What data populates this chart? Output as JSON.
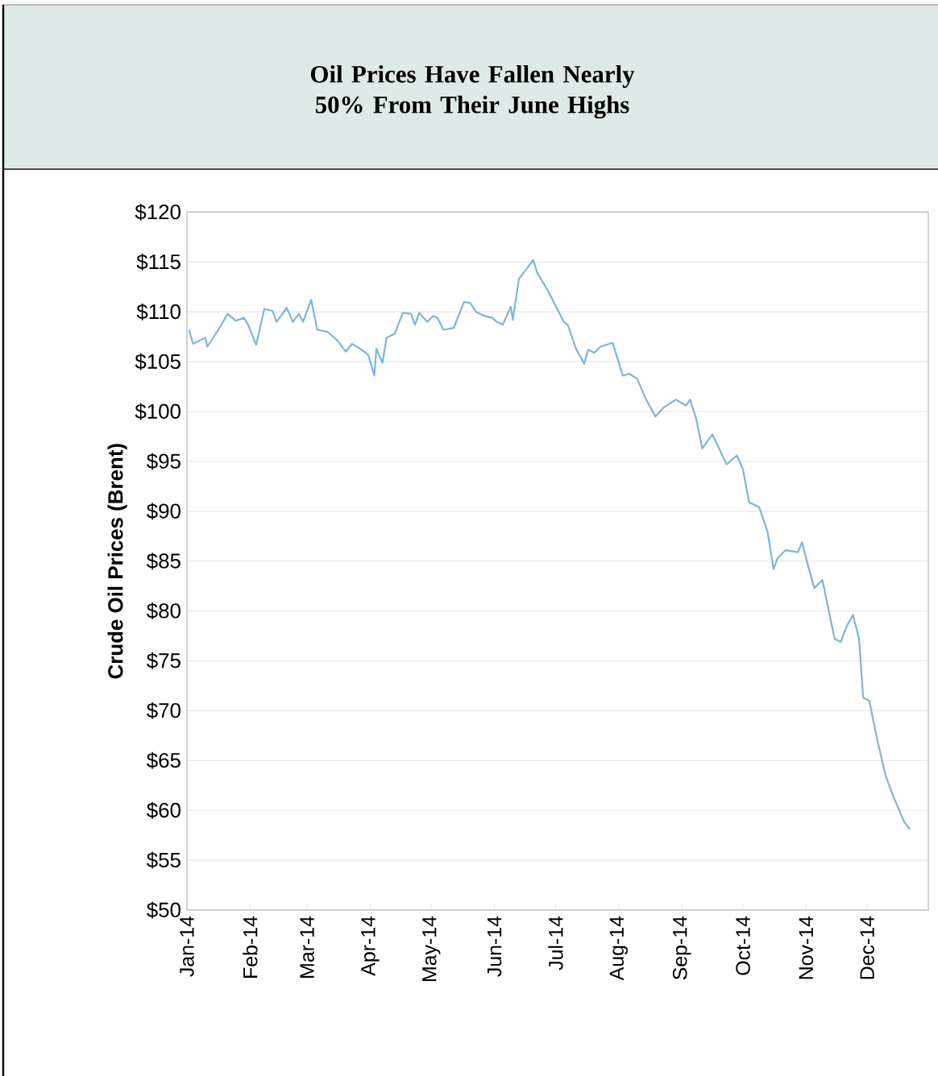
{
  "chart_data": {
    "type": "line",
    "title": "Oil Prices Have Fallen Nearly 50% From Their June Highs",
    "ylabel": "Crude Oil Prices (Brent)",
    "x": [
      "2014-01-02",
      "2014-01-04",
      "2014-01-10",
      "2014-01-11",
      "2014-01-17",
      "2014-01-21",
      "2014-01-25",
      "2014-01-29",
      "2014-01-31",
      "2014-02-04",
      "2014-02-08",
      "2014-02-12",
      "2014-02-14",
      "2014-02-19",
      "2014-02-22",
      "2014-02-25",
      "2014-02-27",
      "2014-03-03",
      "2014-03-06",
      "2014-03-11",
      "2014-03-16",
      "2014-03-20",
      "2014-03-23",
      "2014-03-27",
      "2014-03-31",
      "2014-04-03",
      "2014-04-04",
      "2014-04-07",
      "2014-04-09",
      "2014-04-13",
      "2014-04-17",
      "2014-04-21",
      "2014-04-23",
      "2014-04-25",
      "2014-04-29",
      "2014-05-02",
      "2014-05-04",
      "2014-05-07",
      "2014-05-12",
      "2014-05-17",
      "2014-05-20",
      "2014-05-23",
      "2014-05-27",
      "2014-05-31",
      "2014-06-02",
      "2014-06-05",
      "2014-06-09",
      "2014-06-10",
      "2014-06-13",
      "2014-06-20",
      "2014-06-22",
      "2014-06-27",
      "2014-07-05",
      "2014-07-07",
      "2014-07-11",
      "2014-07-15",
      "2014-07-17",
      "2014-07-20",
      "2014-07-23",
      "2014-07-29",
      "2014-08-03",
      "2014-08-06",
      "2014-08-10",
      "2014-08-14",
      "2014-08-19",
      "2014-08-23",
      "2014-08-29",
      "2014-09-03",
      "2014-09-05",
      "2014-09-08",
      "2014-09-11",
      "2014-09-16",
      "2014-09-23",
      "2014-09-28",
      "2014-10-01",
      "2014-10-04",
      "2014-10-09",
      "2014-10-13",
      "2014-10-16",
      "2014-10-18",
      "2014-10-22",
      "2014-10-28",
      "2014-10-30",
      "2014-11-02",
      "2014-11-05",
      "2014-11-09",
      "2014-11-15",
      "2014-11-18",
      "2014-11-21",
      "2014-11-24",
      "2014-11-27",
      "2014-11-29",
      "2014-12-02",
      "2014-12-06",
      "2014-12-10",
      "2014-12-14",
      "2014-12-19",
      "2014-12-22"
    ],
    "series": [
      {
        "color": "#7fb3dc",
        "values": [
          108.2,
          106.8,
          107.4,
          106.5,
          108.4,
          109.8,
          109.1,
          109.4,
          108.7,
          106.7,
          110.3,
          110.1,
          109.0,
          110.4,
          109.0,
          109.8,
          109.0,
          111.2,
          108.2,
          108.0,
          107.1,
          106.0,
          106.8,
          106.3,
          105.7,
          103.6,
          106.3,
          104.9,
          107.4,
          107.8,
          109.9,
          109.8,
          108.7,
          109.9,
          109.0,
          109.6,
          109.4,
          108.2,
          108.4,
          111.0,
          110.9,
          110.0,
          109.6,
          109.4,
          109.0,
          108.7,
          110.5,
          109.2,
          113.3,
          115.2,
          113.9,
          112.2,
          109.0,
          108.7,
          106.3,
          104.8,
          106.2,
          105.9,
          106.5,
          106.9,
          103.6,
          103.8,
          103.3,
          101.4,
          99.5,
          100.4,
          101.2,
          100.6,
          101.2,
          99.3,
          96.3,
          97.7,
          94.7,
          95.6,
          94.2,
          90.9,
          90.4,
          88.0,
          84.2,
          85.3,
          86.1,
          85.9,
          86.9,
          84.5,
          82.3,
          83.1,
          77.2,
          76.9,
          78.5,
          79.6,
          77.2,
          71.3,
          71.0,
          67.0,
          63.5,
          61.3,
          58.9,
          58.1
        ]
      }
    ],
    "xlim": [
      "2014-01-01",
      "2014-12-31"
    ],
    "xticks": [
      {
        "value": "2014-01-01",
        "label": "Jan-14"
      },
      {
        "value": "2014-02-01",
        "label": "Feb-14"
      },
      {
        "value": "2014-03-01",
        "label": "Mar-14"
      },
      {
        "value": "2014-04-01",
        "label": "Apr-14"
      },
      {
        "value": "2014-05-01",
        "label": "May-14"
      },
      {
        "value": "2014-06-01",
        "label": "Jun-14"
      },
      {
        "value": "2014-07-01",
        "label": "Jul-14"
      },
      {
        "value": "2014-08-01",
        "label": "Aug-14"
      },
      {
        "value": "2014-09-01",
        "label": "Sep-14"
      },
      {
        "value": "2014-10-01",
        "label": "Oct-14"
      },
      {
        "value": "2014-11-01",
        "label": "Nov-14"
      },
      {
        "value": "2014-12-01",
        "label": "Dec-14"
      }
    ],
    "ylim": [
      50,
      120
    ],
    "yticks": [
      {
        "value": 50,
        "label": "$50"
      },
      {
        "value": 55,
        "label": "$55"
      },
      {
        "value": 60,
        "label": "$60"
      },
      {
        "value": 65,
        "label": "$65"
      },
      {
        "value": 70,
        "label": "$70"
      },
      {
        "value": 75,
        "label": "$75"
      },
      {
        "value": 80,
        "label": "$80"
      },
      {
        "value": 85,
        "label": "$85"
      },
      {
        "value": 90,
        "label": "$90"
      },
      {
        "value": 95,
        "label": "$95"
      },
      {
        "value": 100,
        "label": "$100"
      },
      {
        "value": 105,
        "label": "$105"
      },
      {
        "value": 110,
        "label": "$110"
      },
      {
        "value": 115,
        "label": "$115"
      },
      {
        "value": 120,
        "label": "$120"
      }
    ],
    "grid": "y"
  }
}
